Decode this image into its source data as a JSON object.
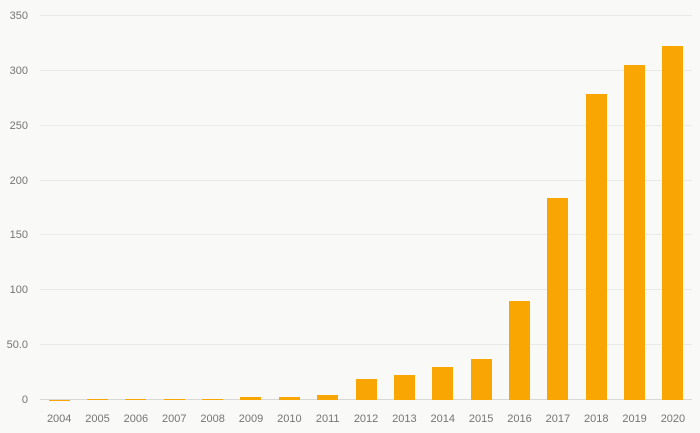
{
  "chart_data": {
    "type": "bar",
    "title": "",
    "xlabel": "",
    "ylabel": "",
    "categories": [
      "2004",
      "2005",
      "2006",
      "2007",
      "2008",
      "2009",
      "2010",
      "2011",
      "2012",
      "2013",
      "2014",
      "2015",
      "2016",
      "2017",
      "2018",
      "2019",
      "2020"
    ],
    "values": [
      0.3,
      1,
      1.2,
      1,
      1,
      3,
      2.5,
      4.5,
      19,
      23,
      30,
      37,
      90,
      184,
      279,
      305,
      323
    ],
    "ylim": [
      0,
      350
    ],
    "yticks": [
      0,
      50,
      100,
      150,
      200,
      250,
      300,
      350
    ],
    "ytick_labels": [
      "0",
      "50.0",
      "100",
      "150",
      "200",
      "250",
      "300",
      "350"
    ],
    "grid": true,
    "legend": "none",
    "bar_color": "#F9A602",
    "background_color": "#f9f9f7",
    "gridline_color": "#e9e9e6",
    "label_color": "#757575"
  }
}
